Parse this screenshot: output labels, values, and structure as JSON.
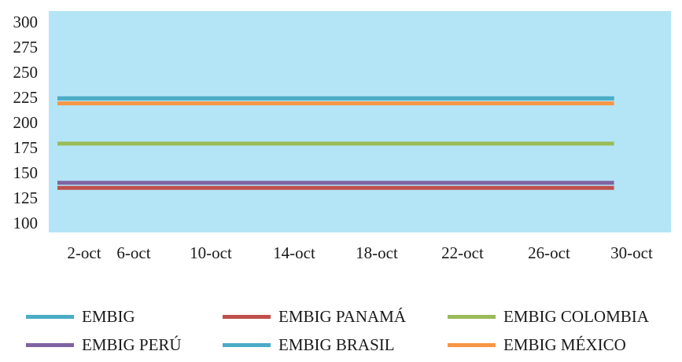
{
  "chart_data": {
    "type": "line",
    "title": "",
    "xlabel": "",
    "ylabel": "",
    "ylim": [
      100,
      300
    ],
    "yticks": [
      "300",
      "275",
      "250",
      "225",
      "200",
      "175",
      "150",
      "125",
      "100"
    ],
    "xticks": [
      "2-oct",
      "6-oct",
      "10-oct",
      "14-oct",
      "18-oct",
      "22-oct",
      "26-oct",
      "30-oct"
    ],
    "x_range": [
      "2-oct",
      "31-oct"
    ],
    "plot_background": "#b3e5f7",
    "grid": false,
    "legend_position": "bottom",
    "series": [
      {
        "name": "EMBIG",
        "color": "#4bacc6",
        "x": [
          "2-oct",
          "31-oct"
        ],
        "values": [
          224,
          224
        ]
      },
      {
        "name": "EMBIG PANAMÁ",
        "color": "#c0504d",
        "x": [
          "2-oct",
          "31-oct"
        ],
        "values": [
          135,
          135
        ]
      },
      {
        "name": "EMBIG COLOMBIA",
        "color": "#9bbb59",
        "x": [
          "2-oct",
          "31-oct"
        ],
        "values": [
          179,
          179
        ]
      },
      {
        "name": "EMBIG PERÚ",
        "color": "#8064a2",
        "x": [
          "2-oct",
          "31-oct"
        ],
        "values": [
          140,
          140
        ]
      },
      {
        "name": "EMBIG BRASIL",
        "color": "#4bacc6",
        "x": [
          "2-oct",
          "31-oct"
        ],
        "values": [
          224,
          224
        ]
      },
      {
        "name": "EMBIG MÉXICO",
        "color": "#f79646",
        "x": [
          "2-oct",
          "31-oct"
        ],
        "values": [
          219,
          219
        ]
      }
    ]
  }
}
